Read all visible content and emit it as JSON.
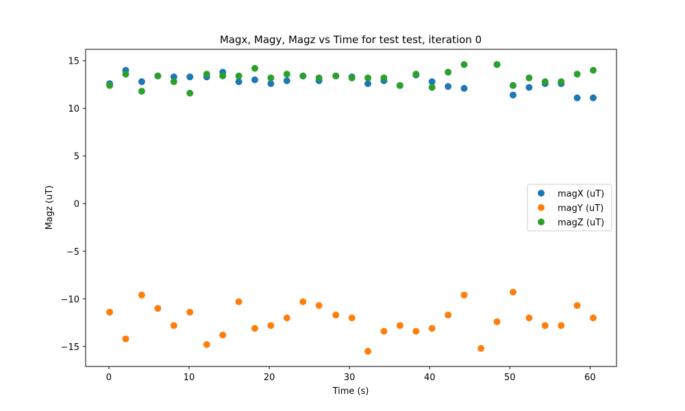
{
  "chart_data": {
    "type": "scatter",
    "title": "Magx, Magy, Magz vs Time for test test, iteration 0",
    "xlabel": "Time (s)",
    "ylabel": "Magz (uT)",
    "xlim": [
      -2.9,
      63.3
    ],
    "ylim": [
      -17.1,
      16.2
    ],
    "xticks": [
      0,
      10,
      20,
      30,
      40,
      50,
      60
    ],
    "yticks": [
      -15,
      -10,
      -5,
      0,
      5,
      10,
      15
    ],
    "xtick_labels": [
      "0",
      "10",
      "20",
      "30",
      "40",
      "50",
      "60"
    ],
    "ytick_labels": [
      "−15",
      "−10",
      "−5",
      "0",
      "5",
      "10",
      "15"
    ],
    "grid": false,
    "legend_position": "center-right",
    "series": [
      {
        "name": "magX (uT)",
        "color": "#1f77b4",
        "points": [
          [
            0.1,
            12.6
          ],
          [
            2.1,
            14.0
          ],
          [
            4.1,
            12.8
          ],
          [
            6.1,
            13.4
          ],
          [
            8.1,
            13.3
          ],
          [
            10.1,
            13.3
          ],
          [
            12.2,
            13.3
          ],
          [
            14.2,
            13.8
          ],
          [
            16.2,
            12.8
          ],
          [
            18.2,
            13.0
          ],
          [
            20.2,
            12.6
          ],
          [
            22.2,
            12.9
          ],
          [
            24.2,
            13.4
          ],
          [
            26.2,
            12.9
          ],
          [
            28.3,
            13.4
          ],
          [
            30.3,
            13.3
          ],
          [
            32.3,
            12.6
          ],
          [
            34.3,
            12.9
          ],
          [
            36.3,
            12.4
          ],
          [
            38.3,
            13.5
          ],
          [
            40.3,
            12.8
          ],
          [
            42.3,
            12.3
          ],
          [
            44.3,
            12.1
          ],
          [
            48.4,
            14.6
          ],
          [
            50.4,
            11.4
          ],
          [
            52.4,
            12.2
          ],
          [
            54.4,
            12.6
          ],
          [
            56.4,
            12.6
          ],
          [
            58.4,
            11.1
          ],
          [
            60.4,
            11.1
          ]
        ]
      },
      {
        "name": "magY (uT)",
        "color": "#ff7f0e",
        "points": [
          [
            0.1,
            -11.4
          ],
          [
            2.1,
            -14.2
          ],
          [
            4.1,
            -9.6
          ],
          [
            6.1,
            -11.0
          ],
          [
            8.1,
            -12.8
          ],
          [
            10.1,
            -11.4
          ],
          [
            12.2,
            -14.8
          ],
          [
            14.2,
            -13.8
          ],
          [
            16.2,
            -10.3
          ],
          [
            18.2,
            -13.1
          ],
          [
            20.2,
            -12.8
          ],
          [
            22.2,
            -12.0
          ],
          [
            24.2,
            -10.3
          ],
          [
            26.2,
            -10.7
          ],
          [
            28.3,
            -11.7
          ],
          [
            30.3,
            -12.0
          ],
          [
            32.3,
            -15.5
          ],
          [
            34.3,
            -13.4
          ],
          [
            36.3,
            -12.8
          ],
          [
            38.3,
            -13.4
          ],
          [
            40.3,
            -13.1
          ],
          [
            42.3,
            -11.7
          ],
          [
            44.3,
            -9.6
          ],
          [
            46.4,
            -15.2
          ],
          [
            48.4,
            -12.4
          ],
          [
            50.4,
            -9.3
          ],
          [
            52.4,
            -12.0
          ],
          [
            54.4,
            -12.8
          ],
          [
            56.4,
            -12.8
          ],
          [
            58.4,
            -10.7
          ],
          [
            60.4,
            -12.0
          ]
        ]
      },
      {
        "name": "magZ (uT)",
        "color": "#2ca02c",
        "points": [
          [
            0.1,
            12.4
          ],
          [
            2.1,
            13.6
          ],
          [
            4.1,
            11.8
          ],
          [
            6.1,
            13.4
          ],
          [
            8.1,
            12.8
          ],
          [
            10.1,
            11.6
          ],
          [
            12.2,
            13.6
          ],
          [
            14.2,
            13.4
          ],
          [
            16.2,
            13.4
          ],
          [
            18.2,
            14.2
          ],
          [
            20.2,
            13.2
          ],
          [
            22.2,
            13.6
          ],
          [
            24.2,
            13.4
          ],
          [
            26.2,
            13.2
          ],
          [
            28.3,
            13.4
          ],
          [
            30.3,
            13.2
          ],
          [
            32.3,
            13.2
          ],
          [
            34.3,
            13.2
          ],
          [
            36.3,
            12.4
          ],
          [
            38.3,
            13.6
          ],
          [
            40.3,
            12.2
          ],
          [
            42.3,
            13.8
          ],
          [
            44.3,
            14.6
          ],
          [
            48.4,
            14.6
          ],
          [
            50.4,
            12.4
          ],
          [
            52.4,
            13.2
          ],
          [
            54.4,
            12.8
          ],
          [
            56.4,
            12.8
          ],
          [
            58.4,
            13.6
          ],
          [
            60.4,
            14.0
          ]
        ]
      }
    ]
  }
}
